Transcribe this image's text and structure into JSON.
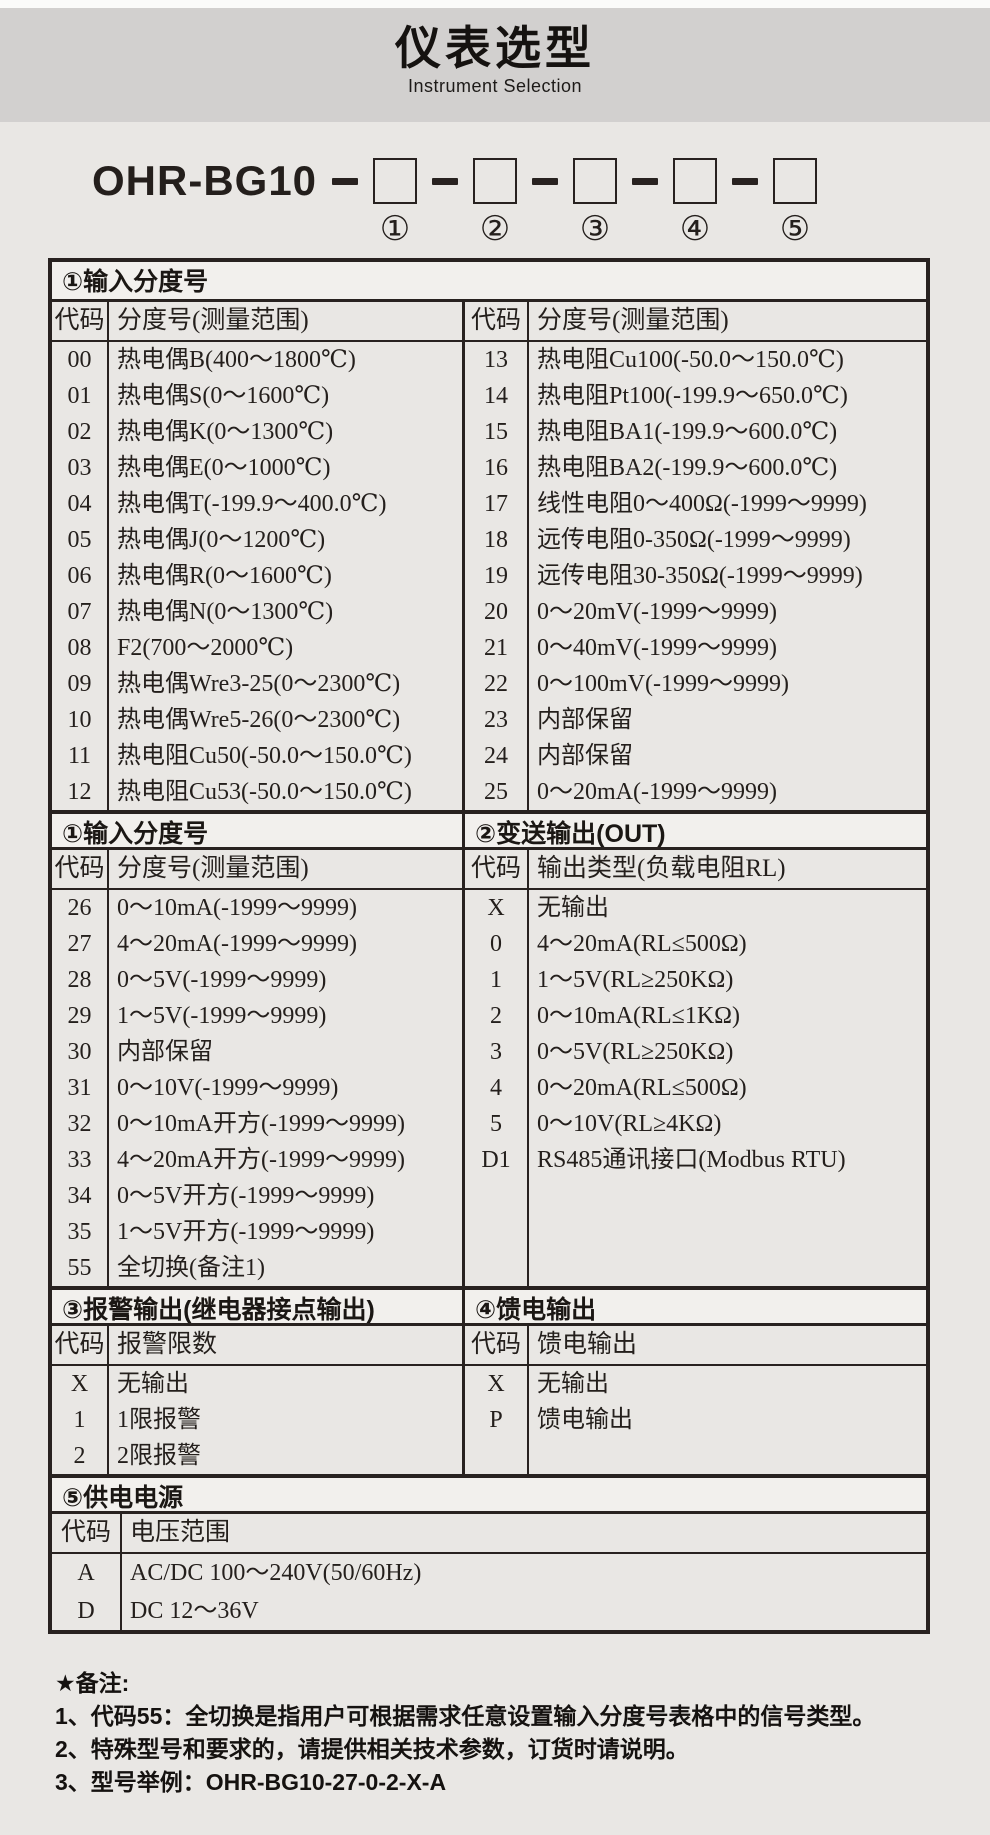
{
  "header": {
    "title": "仪表选型",
    "subtitle": "Instrument Selection"
  },
  "model": {
    "prefix": "OHR-BG10",
    "positions": [
      "①",
      "②",
      "③",
      "④",
      "⑤"
    ]
  },
  "section1": {
    "title": "①输入分度号",
    "code_header": "代码",
    "desc_header": "分度号(测量范围)",
    "left_rows": [
      {
        "code": "00",
        "desc": "热电偶B(400～1800℃)"
      },
      {
        "code": "01",
        "desc": "热电偶S(0～1600℃)"
      },
      {
        "code": "02",
        "desc": "热电偶K(0～1300℃)"
      },
      {
        "code": "03",
        "desc": "热电偶E(0～1000℃)"
      },
      {
        "code": "04",
        "desc": "热电偶T(-199.9～400.0℃)"
      },
      {
        "code": "05",
        "desc": "热电偶J(0～1200℃)"
      },
      {
        "code": "06",
        "desc": "热电偶R(0～1600℃)"
      },
      {
        "code": "07",
        "desc": "热电偶N(0～1300℃)"
      },
      {
        "code": "08",
        "desc": "F2(700～2000℃)"
      },
      {
        "code": "09",
        "desc": "热电偶Wre3-25(0～2300℃)"
      },
      {
        "code": "10",
        "desc": "热电偶Wre5-26(0～2300℃)"
      },
      {
        "code": "11",
        "desc": "热电阻Cu50(-50.0～150.0℃)"
      },
      {
        "code": "12",
        "desc": "热电阻Cu53(-50.0～150.0℃)"
      }
    ],
    "right_rows": [
      {
        "code": "13",
        "desc": "热电阻Cu100(-50.0～150.0℃)"
      },
      {
        "code": "14",
        "desc": "热电阻Pt100(-199.9～650.0℃)"
      },
      {
        "code": "15",
        "desc": "热电阻BA1(-199.9～600.0℃)"
      },
      {
        "code": "16",
        "desc": "热电阻BA2(-199.9～600.0℃)"
      },
      {
        "code": "17",
        "desc": "线性电阻0～400Ω(-1999～9999)"
      },
      {
        "code": "18",
        "desc": "远传电阻0-350Ω(-1999～9999)"
      },
      {
        "code": "19",
        "desc": "远传电阻30-350Ω(-1999～9999)"
      },
      {
        "code": "20",
        "desc": "0～20mV(-1999～9999)"
      },
      {
        "code": "21",
        "desc": "0～40mV(-1999～9999)"
      },
      {
        "code": "22",
        "desc": "0～100mV(-1999～9999)"
      },
      {
        "code": "23",
        "desc": "内部保留"
      },
      {
        "code": "24",
        "desc": "内部保留"
      },
      {
        "code": "25",
        "desc": "0～20mA(-1999～9999)"
      }
    ]
  },
  "section2": {
    "left_title": "①输入分度号",
    "right_title": "②变送输出(OUT)",
    "left_code_header": "代码",
    "left_desc_header": "分度号(测量范围)",
    "right_code_header": "代码",
    "right_desc_header": "输出类型(负载电阻RL)",
    "left_rows": [
      {
        "code": "26",
        "desc": "0～10mA(-1999～9999)"
      },
      {
        "code": "27",
        "desc": "4～20mA(-1999～9999)"
      },
      {
        "code": "28",
        "desc": "0～5V(-1999～9999)"
      },
      {
        "code": "29",
        "desc": "1～5V(-1999～9999)"
      },
      {
        "code": "30",
        "desc": "内部保留"
      },
      {
        "code": "31",
        "desc": "0～10V(-1999～9999)"
      },
      {
        "code": "32",
        "desc": "0～10mA开方(-1999～9999)"
      },
      {
        "code": "33",
        "desc": "4～20mA开方(-1999～9999)"
      },
      {
        "code": "34",
        "desc": "0～5V开方(-1999～9999)"
      },
      {
        "code": "35",
        "desc": "1～5V开方(-1999～9999)"
      },
      {
        "code": "55",
        "desc": "全切换(备注1)"
      }
    ],
    "right_rows": [
      {
        "code": "X",
        "desc": "无输出"
      },
      {
        "code": "0",
        "desc": "4～20mA(RL≤500Ω)"
      },
      {
        "code": "1",
        "desc": "1～5V(RL≥250KΩ)"
      },
      {
        "code": "2",
        "desc": "0～10mA(RL≤1KΩ)"
      },
      {
        "code": "3",
        "desc": "0～5V(RL≥250KΩ)"
      },
      {
        "code": "4",
        "desc": "0～20mA(RL≤500Ω)"
      },
      {
        "code": "5",
        "desc": "0～10V(RL≥4KΩ)"
      },
      {
        "code": "D1",
        "desc": "RS485通讯接口(Modbus RTU)"
      }
    ]
  },
  "section3": {
    "title": "③报警输出(继电器接点输出)",
    "code_header": "代码",
    "desc_header": "报警限数",
    "rows": [
      {
        "code": "X",
        "desc": "无输出"
      },
      {
        "code": "1",
        "desc": "1限报警"
      },
      {
        "code": "2",
        "desc": "2限报警"
      }
    ]
  },
  "section4": {
    "title": "④馈电输出",
    "code_header": "代码",
    "desc_header": "馈电输出",
    "rows": [
      {
        "code": "X",
        "desc": "无输出"
      },
      {
        "code": "P",
        "desc": "馈电输出"
      }
    ]
  },
  "section5": {
    "title": "⑤供电电源",
    "code_header": "代码",
    "desc_header": "电压范围",
    "rows": [
      {
        "code": "A",
        "desc": "AC/DC 100～240V(50/60Hz)"
      },
      {
        "code": "D",
        "desc": "DC 12～36V"
      }
    ]
  },
  "notes": {
    "title": "★备注:",
    "items": [
      "1、代码55：全切换是指用户可根据需求任意设置输入分度号表格中的信号类型。",
      "2、特殊型号和要求的，请提供相关技术参数，订货时请说明。",
      "3、型号举例：OHR-BG10-27-0-2-X-A"
    ]
  },
  "colors": {
    "page_bg": "#e9e7e4",
    "band_bg": "#d2d0cf",
    "section_header_bg": "#f2f0ed",
    "border": "#282220",
    "text": "#241f1c"
  }
}
